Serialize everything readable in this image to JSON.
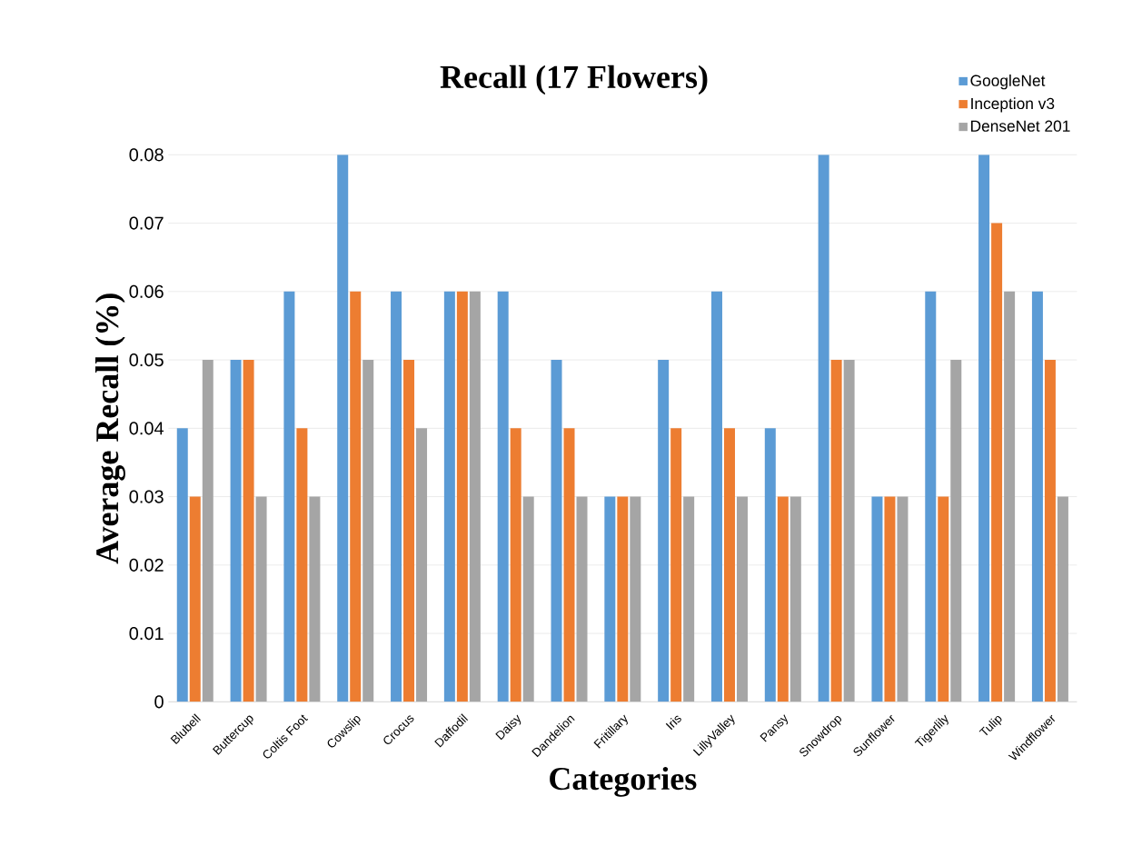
{
  "chart_data": {
    "type": "bar",
    "title": "Recall (17 Flowers)",
    "xlabel": "Categories",
    "ylabel": "Average Recall (%)",
    "categories": [
      "Blubell",
      "Buttercup",
      "Coltis Foot",
      "Cowslip",
      "Crocus",
      "Daffodil",
      "Daisy",
      "Dandelion",
      "Fritillary",
      "Iris",
      "LillyValley",
      "Pansy",
      "Snowdrop",
      "Sunflower",
      "Tigerlily",
      "Tulip",
      "Windflower"
    ],
    "series": [
      {
        "name": "GoogleNet",
        "color": "#5b9bd5",
        "values": [
          0.04,
          0.05,
          0.06,
          0.08,
          0.06,
          0.06,
          0.06,
          0.05,
          0.03,
          0.05,
          0.06,
          0.04,
          0.08,
          0.03,
          0.06,
          0.08,
          0.06
        ]
      },
      {
        "name": "Inception v3",
        "color": "#ed7d31",
        "values": [
          0.03,
          0.05,
          0.04,
          0.06,
          0.05,
          0.06,
          0.04,
          0.04,
          0.03,
          0.04,
          0.04,
          0.03,
          0.05,
          0.03,
          0.03,
          0.07,
          0.05
        ]
      },
      {
        "name": "DenseNet 201",
        "color": "#a5a5a5",
        "values": [
          0.05,
          0.03,
          0.03,
          0.05,
          0.04,
          0.06,
          0.03,
          0.03,
          0.03,
          0.03,
          0.03,
          0.03,
          0.05,
          0.03,
          0.05,
          0.06,
          0.03
        ]
      }
    ],
    "ylim": [
      0,
      0.08
    ],
    "yticks": [
      0,
      0.01,
      0.02,
      0.03,
      0.04,
      0.05,
      0.06,
      0.07,
      0.08
    ],
    "grid": "y",
    "legend": "top right"
  }
}
